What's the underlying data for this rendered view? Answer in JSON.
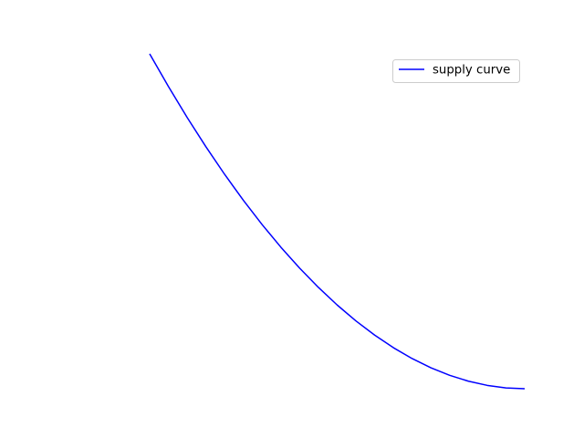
{
  "chart_data": {
    "type": "line",
    "title": "",
    "xlabel": "",
    "ylabel": "",
    "axes_visible": false,
    "grid": false,
    "legend_position": "top-right",
    "xlim": [
      0,
      1
    ],
    "ylim": [
      0,
      1
    ],
    "series": [
      {
        "name": "supply curve",
        "color": "#0000ff",
        "x": [
          0.0,
          0.05,
          0.1,
          0.15,
          0.2,
          0.25,
          0.3,
          0.35,
          0.4,
          0.45,
          0.5,
          0.55,
          0.6,
          0.65,
          0.7,
          0.75,
          0.8,
          0.85,
          0.9,
          0.95,
          1.0
        ],
        "y": [
          1.0,
          0.9025,
          0.81,
          0.7225,
          0.64,
          0.5625,
          0.49,
          0.4225,
          0.36,
          0.3025,
          0.25,
          0.2025,
          0.16,
          0.1225,
          0.09,
          0.0625,
          0.04,
          0.0225,
          0.01,
          0.0025,
          0.0
        ]
      }
    ]
  }
}
